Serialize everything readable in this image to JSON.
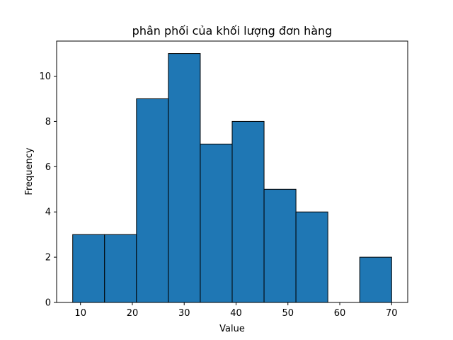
{
  "chart_data": {
    "type": "bar",
    "title": "phân phối của khối lượng đơn hàng",
    "xlabel": "Value",
    "ylabel": "Frequency",
    "xlim": [
      5.4,
      73.1
    ],
    "ylim": [
      0,
      11.55
    ],
    "grid": false,
    "bar_color": "#1f77b4",
    "edge_color": "#000000",
    "bins": [
      {
        "x0": 8.5,
        "x1": 14.65,
        "count": 3
      },
      {
        "x0": 14.65,
        "x1": 20.8,
        "count": 3
      },
      {
        "x0": 20.8,
        "x1": 26.95,
        "count": 9
      },
      {
        "x0": 26.95,
        "x1": 33.1,
        "count": 11
      },
      {
        "x0": 33.1,
        "x1": 39.25,
        "count": 7
      },
      {
        "x0": 39.25,
        "x1": 45.4,
        "count": 8
      },
      {
        "x0": 45.4,
        "x1": 51.55,
        "count": 5
      },
      {
        "x0": 51.55,
        "x1": 57.7,
        "count": 4
      },
      {
        "x0": 57.7,
        "x1": 63.85,
        "count": 0
      },
      {
        "x0": 63.85,
        "x1": 70.0,
        "count": 2
      }
    ],
    "xticks": [
      10,
      20,
      30,
      40,
      50,
      60,
      70
    ],
    "yticks": [
      0,
      2,
      4,
      6,
      8,
      10
    ]
  }
}
